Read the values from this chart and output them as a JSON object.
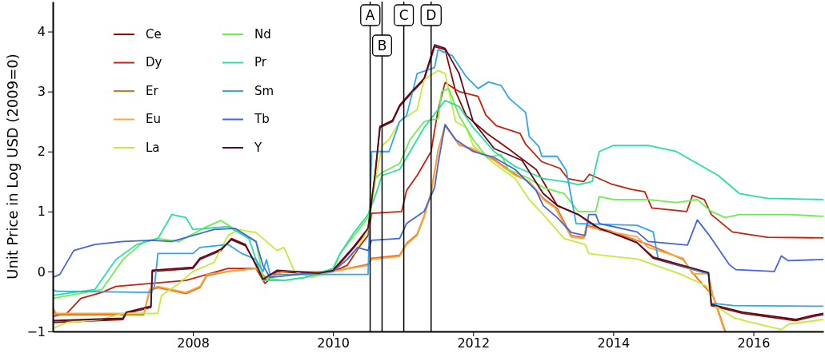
{
  "chart_data": {
    "type": "line",
    "ylabel": "Unit Price in Log USD (2009=0)",
    "xlim": [
      2006,
      2017
    ],
    "ylim": [
      -1,
      4.5
    ],
    "xticks": [
      2008,
      2010,
      2012,
      2014,
      2016
    ],
    "yticks": [
      -1,
      0,
      1,
      2,
      3,
      4
    ],
    "legend": "top left",
    "grid": false,
    "marker": "none",
    "line_style": "solid",
    "ref_lines": [
      {
        "axis": "x",
        "value": 2010.53,
        "label": "A"
      },
      {
        "axis": "x",
        "value": 2010.7,
        "label": "B"
      },
      {
        "axis": "x",
        "value": 2011.01,
        "label": "C"
      },
      {
        "axis": "x",
        "value": 2011.4,
        "label": "D"
      }
    ],
    "series": [
      {
        "name": "Ce",
        "color": "#8c0a0a",
        "x": [
          2006,
          2007,
          2007.05,
          2007.4,
          2007.42,
          2008,
          2008.1,
          2008.4,
          2008.55,
          2008.75,
          2008.9,
          2009,
          2009.2,
          2009.8,
          2010,
          2010.3,
          2010.5,
          2010.6,
          2010.67,
          2010.85,
          2010.95,
          2011.1,
          2011.3,
          2011.45,
          2011.6,
          2011.75,
          2011.9,
          2012.2,
          2012.5,
          2012.9,
          2013.2,
          2013.5,
          2013.8,
          2014,
          2014.34,
          2014.57,
          2015.36,
          2015.4,
          2015.85,
          2016.61,
          2016.86,
          2017
        ],
        "values": [
          -0.85,
          -0.8,
          -0.7,
          -0.6,
          0,
          0.05,
          0.2,
          0.35,
          0.55,
          0.45,
          0.1,
          -0.15,
          0,
          -0.05,
          0,
          0.4,
          0.7,
          1.6,
          2.4,
          2.5,
          2.75,
          2.95,
          3.2,
          3.75,
          3.7,
          3,
          2.6,
          2.3,
          2.05,
          1.7,
          1.1,
          0.95,
          0.7,
          0.65,
          0.48,
          0.22,
          -0.04,
          -0.57,
          -0.7,
          -0.82,
          -0.75,
          -0.72
        ]
      },
      {
        "name": "Dy",
        "color": "#c8200a",
        "x": [
          2006,
          2006.2,
          2006.4,
          2006.7,
          2006.9,
          2007.4,
          2007.9,
          2008.2,
          2008.5,
          2008.9,
          2009.03,
          2009.2,
          2010,
          2010.2,
          2010.4,
          2010.5,
          2010.55,
          2010.98,
          2011.05,
          2011.2,
          2011.3,
          2011.4,
          2011.5,
          2011.6,
          2011.8,
          2012.07,
          2012.18,
          2012.33,
          2012.67,
          2012.75,
          2012.98,
          2013.24,
          2013.35,
          2013.58,
          2013.66,
          2013.97,
          2014.26,
          2014.45,
          2014.55,
          2015.05,
          2015.13,
          2015.3,
          2015.4,
          2015.7,
          2016.2,
          2017
        ],
        "values": [
          -0.75,
          -0.7,
          -0.45,
          -0.35,
          -0.25,
          -0.2,
          -0.15,
          -0.05,
          0.05,
          0.05,
          -0.2,
          0,
          0,
          0.1,
          0.45,
          0.6,
          0.97,
          1,
          1.35,
          1.6,
          1.8,
          2,
          2.7,
          3.15,
          3,
          2.92,
          2.61,
          2.43,
          2.3,
          2.12,
          1.83,
          1.72,
          1.55,
          1.5,
          1.62,
          1.46,
          1.37,
          1.33,
          1.06,
          1,
          1.27,
          1.2,
          0.95,
          0.66,
          0.57,
          0.56
        ]
      },
      {
        "name": "Er",
        "color": "#f26b1d",
        "x": [
          2006,
          2006.05,
          2007.3,
          2007.38,
          2007.5,
          2007.9,
          2008.1,
          2008.2,
          2008.5,
          2008.9,
          2009.05,
          2009.3,
          2010,
          2010.5,
          2010.55,
          2010.95,
          2011.05,
          2011.2,
          2011.3,
          2011.4,
          2011.5,
          2011.6,
          2011.8,
          2012,
          2012.3,
          2012.6,
          2012.8,
          2013,
          2013.2,
          2013.4,
          2013.58,
          2013.62,
          2013.95,
          2014.5,
          2015,
          2015.13,
          2015.43,
          2015.6
        ],
        "values": [
          -0.65,
          -0.72,
          -0.72,
          -0.32,
          -0.27,
          -0.37,
          -0.27,
          -0.07,
          0,
          0.05,
          -0.12,
          0,
          0,
          0.12,
          0.22,
          0.27,
          0.47,
          0.62,
          0.92,
          1.32,
          2.02,
          2.43,
          2.12,
          2.02,
          1.87,
          1.62,
          1.5,
          1.22,
          1.05,
          0.6,
          0.57,
          0.77,
          0.68,
          0.45,
          0.2,
          -0.02,
          -0.42,
          -1
        ]
      },
      {
        "name": "Eu",
        "color": "#f9a83a",
        "x": [
          2006,
          2006.05,
          2007.3,
          2007.38,
          2007.5,
          2007.9,
          2008.1,
          2008.2,
          2008.5,
          2008.9,
          2009.05,
          2009.3,
          2010,
          2010.5,
          2010.55,
          2010.95,
          2011.05,
          2011.2,
          2011.3,
          2011.4,
          2011.5,
          2011.6,
          2011.8,
          2012,
          2012.3,
          2012.6,
          2012.8,
          2013,
          2013.17,
          2013.4,
          2013.58,
          2013.62,
          2013.97,
          2014.34,
          2014.5,
          2015,
          2015.13,
          2015.36,
          2015.43,
          2015.58
        ],
        "values": [
          -0.6,
          -0.7,
          -0.7,
          -0.3,
          -0.25,
          -0.35,
          -0.25,
          -0.05,
          0,
          0.05,
          -0.1,
          0,
          0,
          0.1,
          0.2,
          0.25,
          0.45,
          0.6,
          0.9,
          1.3,
          2,
          2.45,
          2.1,
          2.05,
          1.85,
          1.6,
          1.5,
          1.2,
          1.06,
          0.57,
          0.55,
          0.75,
          0.66,
          0.58,
          0.4,
          0.22,
          -0.04,
          -0.04,
          -0.44,
          -0.97
        ]
      },
      {
        "name": "La",
        "color": "#c3ec3a",
        "x": [
          2006,
          2006.2,
          2006.7,
          2007,
          2007.5,
          2007.55,
          2007.8,
          2008,
          2008.3,
          2008.5,
          2008.65,
          2008.9,
          2009.2,
          2009.3,
          2009.45,
          2009.7,
          2010,
          2010.3,
          2010.5,
          2010.6,
          2010.7,
          2010.8,
          2010.95,
          2011.2,
          2011.3,
          2011.5,
          2011.6,
          2011.75,
          2011.9,
          2012,
          2012.3,
          2012.6,
          2012.8,
          2013,
          2013.3,
          2013.6,
          2013.65,
          2014,
          2014.34,
          2014.95,
          2015.36,
          2015.4,
          2015.72,
          2015.9,
          2016.4,
          2016.5,
          2017
        ],
        "values": [
          -0.95,
          -0.85,
          -0.8,
          -0.7,
          -0.7,
          -0.4,
          -0.2,
          0,
          0.15,
          0.6,
          0.7,
          0.65,
          0.35,
          0.4,
          0,
          -0.1,
          0,
          0.3,
          0.7,
          1.5,
          2.1,
          2.2,
          2.5,
          2.7,
          3.2,
          3.35,
          3.3,
          2.5,
          2.4,
          2.1,
          1.8,
          1.55,
          1.2,
          0.95,
          0.55,
          0.45,
          0.3,
          0.25,
          0.21,
          -0.04,
          -0.26,
          -0.53,
          -0.77,
          -0.83,
          -0.97,
          -0.88,
          -0.8
        ]
      },
      {
        "name": "Nd",
        "color": "#6af04e",
        "x": [
          2006,
          2006.7,
          2007,
          2007.3,
          2007.5,
          2007.8,
          2008.2,
          2008.4,
          2008.6,
          2008.9,
          2009,
          2009.3,
          2009.6,
          2010,
          2010.1,
          2010.3,
          2010.5,
          2010.6,
          2010.7,
          2010.95,
          2011.1,
          2011.3,
          2011.5,
          2011.55,
          2011.65,
          2011.8,
          2012,
          2012.2,
          2012.4,
          2012.5,
          2012.8,
          2013,
          2013.3,
          2013.5,
          2013.75,
          2013.8,
          2014,
          2014.5,
          2014.9,
          2015.2,
          2015.4,
          2015.6,
          2015.8,
          2016.5,
          2017
        ],
        "values": [
          -0.45,
          -0.3,
          0.2,
          0.5,
          0.55,
          0.5,
          0.75,
          0.85,
          0.7,
          0.5,
          -0.1,
          -0.15,
          -0.1,
          0,
          0.3,
          0.6,
          0.9,
          1.55,
          1.65,
          1.8,
          2.2,
          2.5,
          2.55,
          3,
          3.05,
          2.6,
          2.2,
          1.9,
          1.95,
          1.7,
          1.55,
          1.4,
          1.3,
          1,
          1,
          1.25,
          1.2,
          1.2,
          1.15,
          1.2,
          1,
          0.9,
          0.95,
          0.95,
          0.92
        ]
      },
      {
        "name": "Pr",
        "color": "#26e0a8",
        "x": [
          2006,
          2006.6,
          2006.9,
          2007.2,
          2007.5,
          2007.7,
          2007.9,
          2008,
          2008.5,
          2008.8,
          2009,
          2009.3,
          2009.6,
          2010,
          2010.1,
          2010.3,
          2010.5,
          2010.6,
          2010.7,
          2010.95,
          2011.1,
          2011.3,
          2011.4,
          2011.6,
          2011.8,
          2012,
          2012.3,
          2012.6,
          2013,
          2013.3,
          2013.5,
          2013.7,
          2013.8,
          2014,
          2014.5,
          2014.9,
          2015.2,
          2015.5,
          2015.8,
          2016.2,
          2017
        ],
        "values": [
          -0.4,
          -0.3,
          0.2,
          0.45,
          0.55,
          0.95,
          0.9,
          0.7,
          0.75,
          0.55,
          -0.15,
          -0.15,
          -0.1,
          0.05,
          0.3,
          0.65,
          0.95,
          1.25,
          1.6,
          1.7,
          2,
          2.4,
          2.55,
          2.85,
          2.75,
          2.4,
          2,
          1.75,
          1.55,
          1.5,
          1.45,
          1.5,
          2,
          2.1,
          2.1,
          2,
          1.8,
          1.6,
          1.3,
          1.22,
          1.2
        ]
      },
      {
        "name": "Sm",
        "color": "#2fa5f5",
        "x": [
          2006,
          2006.05,
          2007.4,
          2007.45,
          2007.5,
          2008,
          2008.1,
          2008.5,
          2008.7,
          2008.9,
          2009,
          2009.05,
          2009.1,
          2010.5,
          2010.55,
          2010.8,
          2010.95,
          2011.05,
          2011.2,
          2011.45,
          2011.5,
          2011.7,
          2011.9,
          2012.07,
          2012.22,
          2012.4,
          2012.52,
          2012.75,
          2012.8,
          2012.94,
          2012.98,
          2013.2,
          2013.33,
          2013.47,
          2014.34,
          2014.57,
          2014.64,
          2015.36,
          2015.4,
          2015.72,
          2017
        ],
        "values": [
          -0.3,
          -0.33,
          -0.35,
          -0.25,
          0.3,
          0.3,
          0.4,
          0.45,
          0.3,
          0.2,
          0,
          0.2,
          -0.05,
          -0.05,
          2,
          2,
          2.5,
          2.6,
          3.3,
          3.4,
          3.7,
          3.6,
          3.25,
          3.05,
          3.16,
          3.1,
          2.88,
          2.65,
          2.25,
          2.08,
          1.92,
          1.92,
          1.68,
          0.8,
          0.77,
          0.66,
          0.22,
          -0.04,
          -0.53,
          -0.57,
          -0.58
        ]
      },
      {
        "name": "Tb",
        "color": "#4464e0",
        "x": [
          2006,
          2006.1,
          2006.3,
          2006.6,
          2007,
          2007.4,
          2007.7,
          2008,
          2008.3,
          2008.6,
          2008.9,
          2009,
          2009.1,
          2009.5,
          2010,
          2010.2,
          2010.35,
          2010.5,
          2010.55,
          2010.95,
          2011.05,
          2011.3,
          2011.45,
          2011.5,
          2011.6,
          2011.75,
          2012,
          2012.3,
          2012.6,
          2012.9,
          2013,
          2013.2,
          2013.4,
          2013.6,
          2013.65,
          2013.75,
          2013.8,
          2014.34,
          2014.5,
          2015.06,
          2015.2,
          2015.36,
          2015.66,
          2015.75,
          2016.3,
          2016.4,
          2016.5,
          2017
        ],
        "values": [
          -0.1,
          -0.05,
          0.35,
          0.45,
          0.5,
          0.52,
          0.5,
          0.6,
          0.7,
          0.72,
          0.5,
          0.1,
          -0.1,
          -0.05,
          0,
          0.2,
          0.4,
          0.35,
          0.52,
          0.55,
          0.8,
          1,
          1.4,
          1.8,
          2.45,
          2.2,
          2,
          1.9,
          1.7,
          1.35,
          1.1,
          0.9,
          0.65,
          0.6,
          0.95,
          0.95,
          0.8,
          0.66,
          0.5,
          0.44,
          0.86,
          0.62,
          0.11,
          0.03,
          0,
          0.26,
          0.18,
          0.2
        ]
      },
      {
        "name": "Y",
        "color": "#5a0a1e",
        "x": [
          2006,
          2007,
          2007.05,
          2007.4,
          2007.42,
          2008,
          2008.1,
          2008.4,
          2008.55,
          2008.75,
          2008.9,
          2009,
          2009.2,
          2009.8,
          2010,
          2010.3,
          2010.5,
          2010.6,
          2010.67,
          2010.85,
          2010.95,
          2011.1,
          2011.3,
          2011.45,
          2011.6,
          2011.8,
          2012,
          2012.3,
          2012.7,
          2013,
          2013.2,
          2013.5,
          2013.8,
          2014.34,
          2014.57,
          2015.36,
          2015.4,
          2015.85,
          2016.61,
          2016.86,
          2017
        ],
        "values": [
          -0.82,
          -0.78,
          -0.68,
          -0.58,
          0.02,
          0.07,
          0.22,
          0.37,
          0.53,
          0.43,
          0.12,
          -0.13,
          0.02,
          -0.03,
          0.02,
          0.42,
          0.72,
          1.62,
          2.42,
          2.52,
          2.77,
          2.97,
          3.22,
          3.78,
          3.72,
          3.3,
          2.5,
          2.05,
          1.85,
          1.3,
          1.1,
          0.95,
          0.72,
          0.48,
          0.24,
          -0.02,
          -0.55,
          -0.68,
          -0.8,
          -0.73,
          -0.7
        ]
      }
    ]
  }
}
